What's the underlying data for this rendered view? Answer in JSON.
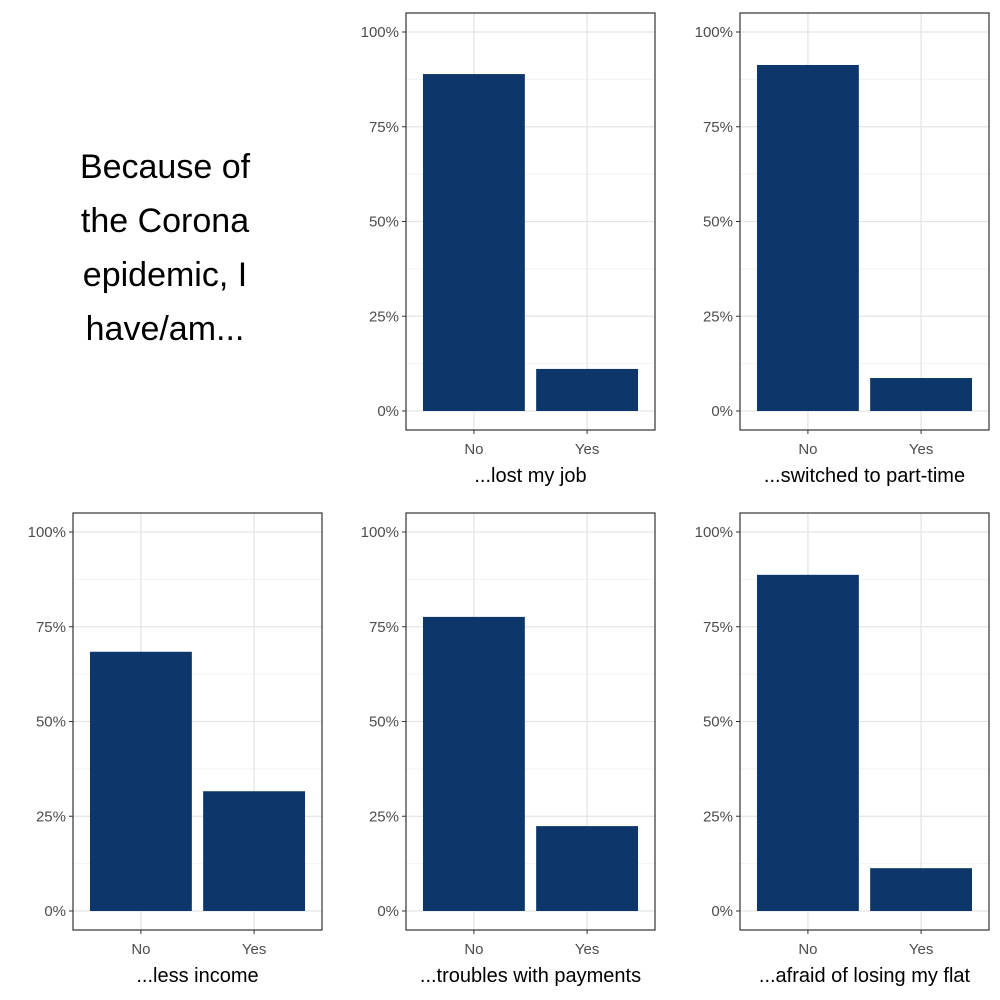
{
  "figure": {
    "title_lines": [
      "Because of",
      "the Corona",
      "epidemic, I",
      "have/am..."
    ]
  },
  "colors": {
    "bar": "#0d376b",
    "grid_major": "#e5e5e5",
    "grid_minor": "#f2f2f2",
    "panel_border": "#333333",
    "tick_text": "#4d4d4d"
  },
  "chart_data": [
    {
      "type": "bar",
      "categories": [
        "No",
        "Yes"
      ],
      "values": [
        88.9,
        11.1
      ],
      "xlabel": "...lost my job",
      "ylabel": "",
      "ylim": [
        0,
        100
      ],
      "yticks": [
        "0%",
        "25%",
        "50%",
        "75%",
        "100%"
      ],
      "grid": true
    },
    {
      "type": "bar",
      "categories": [
        "No",
        "Yes"
      ],
      "values": [
        91.3,
        8.7
      ],
      "xlabel": "...switched to part-time",
      "ylabel": "",
      "ylim": [
        0,
        100
      ],
      "yticks": [
        "0%",
        "25%",
        "50%",
        "75%",
        "100%"
      ],
      "grid": true
    },
    {
      "type": "bar",
      "categories": [
        "No",
        "Yes"
      ],
      "values": [
        68.4,
        31.6
      ],
      "xlabel": "...less income",
      "ylabel": "",
      "ylim": [
        0,
        100
      ],
      "yticks": [
        "0%",
        "25%",
        "50%",
        "75%",
        "100%"
      ],
      "grid": true
    },
    {
      "type": "bar",
      "categories": [
        "No",
        "Yes"
      ],
      "values": [
        77.6,
        22.4
      ],
      "xlabel": "...troubles with payments",
      "ylabel": "",
      "ylim": [
        0,
        100
      ],
      "yticks": [
        "0%",
        "25%",
        "50%",
        "75%",
        "100%"
      ],
      "grid": true
    },
    {
      "type": "bar",
      "categories": [
        "No",
        "Yes"
      ],
      "values": [
        88.7,
        11.3
      ],
      "xlabel": "...afraid of losing my flat",
      "ylabel": "",
      "ylim": [
        0,
        100
      ],
      "yticks": [
        "0%",
        "25%",
        "50%",
        "75%",
        "100%"
      ],
      "grid": true
    }
  ]
}
